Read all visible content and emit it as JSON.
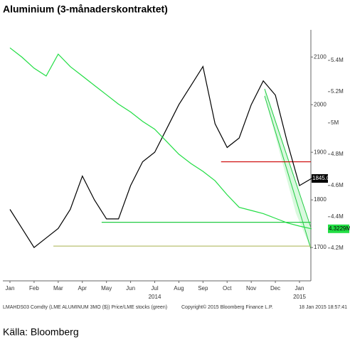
{
  "chart_data": {
    "type": "line",
    "title": "Aluminium (3-månaderskontraktet)",
    "source": "Källa: Bloomberg",
    "footer_left": "LMAHDS03 Comdty (LME ALUMINUM 3MO ($)) Price/LME stocks (green)",
    "footer_center": "Copyright© 2015 Bloomberg Finance L.P.",
    "footer_right": "18 Jan 2015 18:57:41",
    "categories": [
      "Jan",
      null,
      "Feb",
      null,
      "Mar",
      null,
      "Apr",
      null,
      "May",
      null,
      "Jun",
      null,
      "Jul",
      null,
      "Aug",
      null,
      "Sep",
      null,
      "Oct",
      null,
      "Nov",
      null,
      "Dec",
      null,
      "Jan",
      null
    ],
    "years": [
      {
        "index": 12,
        "label": "2014"
      },
      {
        "index": 24,
        "label": "2015"
      }
    ],
    "series": [
      {
        "name": "Price",
        "color": "#000000",
        "values": [
          1780,
          1740,
          1700,
          1720,
          1740,
          1780,
          1850,
          1800,
          1760,
          1760,
          1830,
          1880,
          1900,
          1950,
          2000,
          2040,
          2080,
          1960,
          1910,
          1930,
          2000,
          2050,
          2020,
          1920,
          1830,
          1845
        ],
        "value_labels": [
          null,
          null,
          null,
          null,
          null,
          null,
          null,
          null,
          null,
          null,
          null,
          null,
          null,
          null,
          null,
          null,
          null,
          null,
          null,
          null,
          null,
          null,
          null,
          null,
          null,
          "1845.00"
        ]
      },
      {
        "name": "LME stocks (green)",
        "color": "#22dd44",
        "axis": "y2",
        "values": [
          5.48,
          5.42,
          5.35,
          5.3,
          5.44,
          5.36,
          5.3,
          5.24,
          5.18,
          5.12,
          5.07,
          5.01,
          4.96,
          4.88,
          4.8,
          4.74,
          4.69,
          4.63,
          4.54,
          4.46,
          4.44,
          4.42,
          4.39,
          4.36,
          4.34,
          4.3229
        ],
        "value_labels": [
          null,
          null,
          null,
          null,
          null,
          null,
          null,
          null,
          null,
          null,
          null,
          null,
          null,
          null,
          null,
          null,
          null,
          null,
          null,
          null,
          null,
          null,
          null,
          null,
          null,
          "4.3229M"
        ]
      }
    ],
    "hlines": [
      {
        "value": 1880,
        "start": 17.5,
        "color": "#cc0000"
      },
      {
        "value": 1753,
        "start": 7.6,
        "color": "#22cc44"
      },
      {
        "value": 1703,
        "start": 3.6,
        "color": "#b8c070"
      }
    ],
    "ylim": [
      1630,
      2157
    ],
    "yticks": [
      1700,
      1800,
      1900,
      2000,
      2100
    ],
    "y2lim": [
      3.99,
      5.595
    ],
    "y2ticks": [
      {
        "value": 4.2,
        "label": "4.2M"
      },
      {
        "value": 4.4,
        "label": "4.4M"
      },
      {
        "value": 4.6,
        "label": "4.6M"
      },
      {
        "value": 4.8,
        "label": "4.8M"
      },
      {
        "value": 5,
        "label": "5M"
      },
      {
        "value": 5.2,
        "label": "5.2M"
      },
      {
        "value": 5.4,
        "label": "5.4M"
      }
    ],
    "grid": false
  }
}
